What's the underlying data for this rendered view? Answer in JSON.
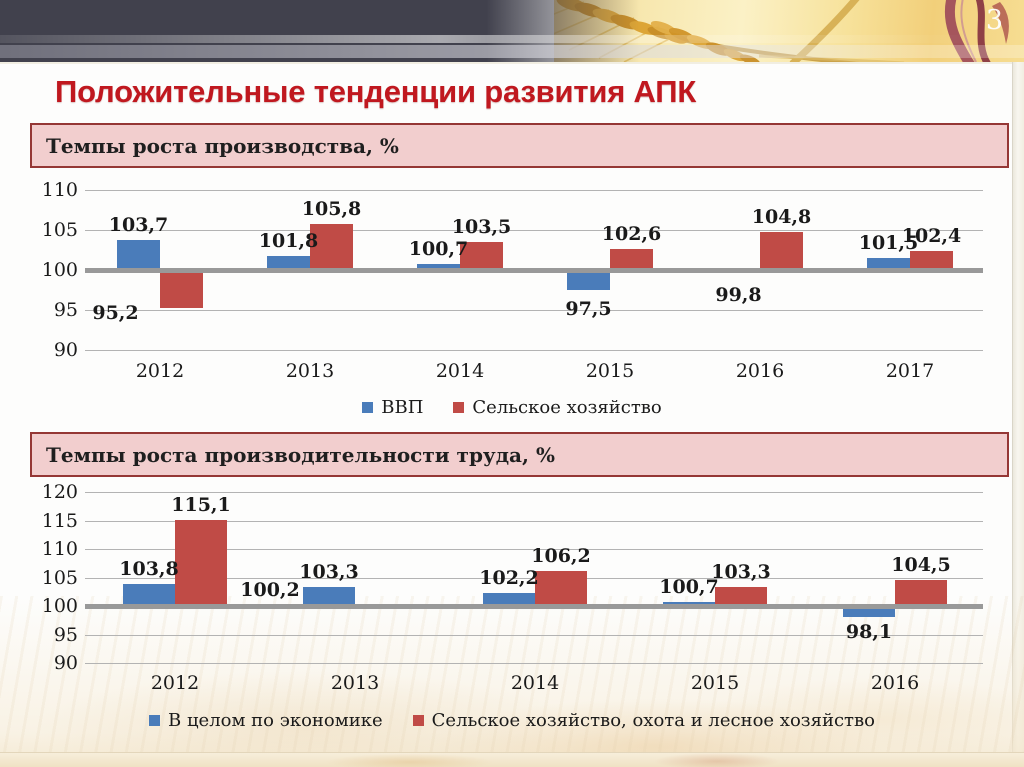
{
  "header": {
    "page_number": "3"
  },
  "title": "Положительные тенденции развития АПК",
  "colors": {
    "blue": "#4a7cba",
    "red": "#c04b46",
    "title": "#c0181f",
    "box_fill": "#f2cece",
    "box_border": "#953735",
    "gridline": "#b3b3b3",
    "baseline": "#999999",
    "banner_dark": "#41414d",
    "text": "#1a1a1a"
  },
  "chart_data": [
    {
      "type": "bar",
      "title": "Темпы роста производства, %",
      "categories": [
        "2012",
        "2013",
        "2014",
        "2015",
        "2016",
        "2017"
      ],
      "yticks": [
        110,
        105,
        100,
        95,
        90
      ],
      "ylim": [
        90,
        110
      ],
      "baseline": 100,
      "grid": true,
      "legend_position": "bottom",
      "series": [
        {
          "name": "ВВП",
          "color": "blue",
          "values": [
            103.7,
            101.8,
            100.7,
            97.5,
            99.8,
            101.5
          ],
          "labels": [
            "103,7",
            "101,8",
            "100,7",
            "97,5",
            "99,8",
            "101,5"
          ]
        },
        {
          "name": "Сельское хозяйство",
          "color": "red",
          "values": [
            95.2,
            105.8,
            103.5,
            102.6,
            104.8,
            102.4
          ],
          "labels": [
            "95,2",
            "105,8",
            "103,5",
            "102,6",
            "104,8",
            "102,4"
          ]
        }
      ]
    },
    {
      "type": "bar",
      "title": "Темпы роста производительности труда, %",
      "categories": [
        "2012",
        "2013",
        "2014",
        "2015",
        "2016"
      ],
      "yticks": [
        120,
        115,
        110,
        105,
        100,
        95,
        90
      ],
      "ylim": [
        90,
        120
      ],
      "baseline": 100,
      "grid": true,
      "legend_position": "bottom",
      "series": [
        {
          "name": "В целом по экономике",
          "color": "blue",
          "values": [
            103.8,
            103.3,
            102.2,
            100.7,
            98.1
          ],
          "labels": [
            "103,8",
            "103,3",
            "102,2",
            "100,7",
            "98,1"
          ]
        },
        {
          "name": "Сельское хозяйство, охота и лесное хозяйство",
          "color": "red",
          "values": [
            115.1,
            100.2,
            106.2,
            103.3,
            104.5
          ],
          "labels": [
            "115,1",
            "100,2",
            "106,2",
            "103,3",
            "104,5"
          ]
        }
      ]
    }
  ]
}
